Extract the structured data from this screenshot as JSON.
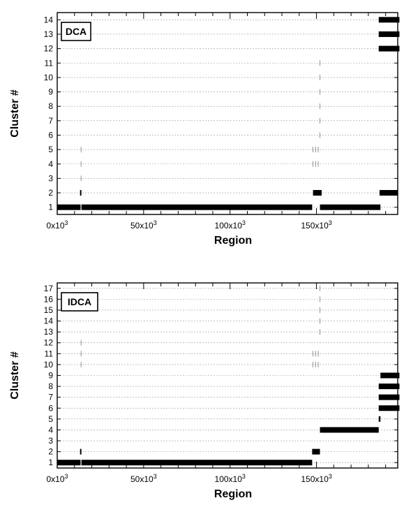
{
  "chart_data": [
    {
      "type": "bar",
      "orientation": "horizontal-segments",
      "title": "",
      "panel_label": "DCA",
      "xlabel": "Region",
      "ylabel": "Cluster #",
      "xlim": [
        0,
        197000
      ],
      "ylim": [
        0.5,
        14.5
      ],
      "x_ticks": [
        {
          "value": 0,
          "label": "0x10",
          "exp": "3"
        },
        {
          "value": 50000,
          "label": "50x10",
          "exp": "3"
        },
        {
          "value": 100000,
          "label": "100x10",
          "exp": "3"
        },
        {
          "value": 150000,
          "label": "150x10",
          "exp": "3"
        }
      ],
      "y_ticks": [
        1,
        2,
        3,
        4,
        5,
        6,
        7,
        8,
        9,
        10,
        11,
        12,
        13,
        14
      ],
      "grid": true,
      "color": "#000000",
      "segments": [
        {
          "cluster": 1,
          "start": 0,
          "end": 13500
        },
        {
          "cluster": 1,
          "start": 14000,
          "end": 147500
        },
        {
          "cluster": 1,
          "start": 152000,
          "end": 187000
        },
        {
          "cluster": 2,
          "start": 13200,
          "end": 14000
        },
        {
          "cluster": 2,
          "start": 148000,
          "end": 153000
        },
        {
          "cluster": 2,
          "start": 186500,
          "end": 197000
        },
        {
          "cluster": 12,
          "start": 186000,
          "end": 198000
        },
        {
          "cluster": 13,
          "start": 186000,
          "end": 198000
        },
        {
          "cluster": 14,
          "start": 186000,
          "end": 198000
        }
      ],
      "thin_marks": [
        {
          "cluster": 2,
          "x": 0
        },
        {
          "cluster": 3,
          "x": 13800
        },
        {
          "cluster": 4,
          "x": 13800
        },
        {
          "cluster": 5,
          "x": 13800
        },
        {
          "cluster": 4,
          "x": 148000
        },
        {
          "cluster": 4,
          "x": 149500
        },
        {
          "cluster": 4,
          "x": 151000
        },
        {
          "cluster": 5,
          "x": 148000
        },
        {
          "cluster": 5,
          "x": 149500
        },
        {
          "cluster": 5,
          "x": 151000
        },
        {
          "cluster": 6,
          "x": 152000
        },
        {
          "cluster": 7,
          "x": 152000
        },
        {
          "cluster": 8,
          "x": 152000
        },
        {
          "cluster": 9,
          "x": 152000
        },
        {
          "cluster": 10,
          "x": 152000
        },
        {
          "cluster": 11,
          "x": 152000
        }
      ]
    },
    {
      "type": "bar",
      "orientation": "horizontal-segments",
      "title": "",
      "panel_label": "IDCA",
      "xlabel": "Region",
      "ylabel": "Cluster #",
      "xlim": [
        0,
        197000
      ],
      "ylim": [
        0.5,
        17.5
      ],
      "x_ticks": [
        {
          "value": 0,
          "label": "0x10",
          "exp": "3"
        },
        {
          "value": 50000,
          "label": "50x10",
          "exp": "3"
        },
        {
          "value": 100000,
          "label": "100x10",
          "exp": "3"
        },
        {
          "value": 150000,
          "label": "150x10",
          "exp": "3"
        }
      ],
      "y_ticks": [
        1,
        2,
        3,
        4,
        5,
        6,
        7,
        8,
        9,
        10,
        11,
        12,
        13,
        14,
        15,
        16,
        17
      ],
      "grid": true,
      "color": "#000000",
      "segments": [
        {
          "cluster": 1,
          "start": 0,
          "end": 13500
        },
        {
          "cluster": 1,
          "start": 14000,
          "end": 147500
        },
        {
          "cluster": 2,
          "start": 13200,
          "end": 14000
        },
        {
          "cluster": 2,
          "start": 147500,
          "end": 152000
        },
        {
          "cluster": 4,
          "start": 152000,
          "end": 186000
        },
        {
          "cluster": 5,
          "start": 186000,
          "end": 187000
        },
        {
          "cluster": 6,
          "start": 186000,
          "end": 198000
        },
        {
          "cluster": 7,
          "start": 186000,
          "end": 198000
        },
        {
          "cluster": 8,
          "start": 186000,
          "end": 198000
        },
        {
          "cluster": 9,
          "start": 187000,
          "end": 198000
        }
      ],
      "thin_marks": [
        {
          "cluster": 2,
          "x": 0
        },
        {
          "cluster": 10,
          "x": 13800
        },
        {
          "cluster": 11,
          "x": 13800
        },
        {
          "cluster": 12,
          "x": 13800
        },
        {
          "cluster": 10,
          "x": 148000
        },
        {
          "cluster": 10,
          "x": 149500
        },
        {
          "cluster": 10,
          "x": 151000
        },
        {
          "cluster": 11,
          "x": 148000
        },
        {
          "cluster": 11,
          "x": 149500
        },
        {
          "cluster": 11,
          "x": 151000
        },
        {
          "cluster": 13,
          "x": 152000
        },
        {
          "cluster": 14,
          "x": 152000
        },
        {
          "cluster": 15,
          "x": 152000
        },
        {
          "cluster": 16,
          "x": 152000
        },
        {
          "cluster": 17,
          "x": 152000
        }
      ]
    }
  ]
}
